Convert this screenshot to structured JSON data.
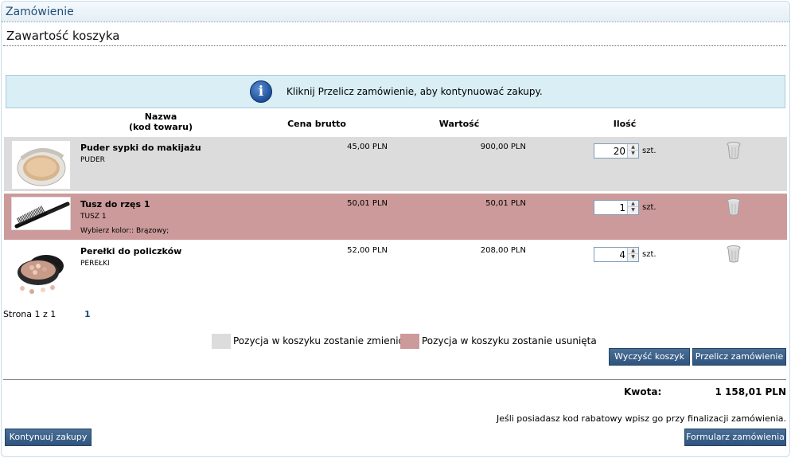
{
  "window": {
    "title": "Zamówienie"
  },
  "section": {
    "title": "Zawartość koszyka"
  },
  "info": {
    "message": "Kliknij Przelicz zamówienie, aby kontynuować zakupy."
  },
  "columns": {
    "name_line1": "Nazwa",
    "name_line2": "(kod towaru)",
    "price": "Cena brutto",
    "value": "Wartość",
    "qty": "Ilość"
  },
  "items": [
    {
      "name": "Puder sypki do makijażu",
      "code": "PUDER",
      "option": "",
      "price": "45,00 PLN",
      "value": "900,00 PLN",
      "qty": "20",
      "unit": "szt.",
      "state": "changed",
      "icon": "powder-compact-icon"
    },
    {
      "name": "Tusz do rzęs 1",
      "code": "TUSZ 1",
      "option": "Wybierz kolor:: Brązowy;",
      "price": "50,01 PLN",
      "value": "50,01 PLN",
      "qty": "1",
      "unit": "szt.",
      "state": "removed",
      "icon": "mascara-brush-icon"
    },
    {
      "name": "Perełki do policzków",
      "code": "PEREŁKI",
      "option": "",
      "price": "52,00 PLN",
      "value": "208,00 PLN",
      "qty": "4",
      "unit": "szt.",
      "state": "normal",
      "icon": "blush-pearls-icon"
    }
  ],
  "pager": {
    "label": "Strona 1 z 1",
    "current": "1"
  },
  "legend": {
    "changed": "Pozycja w koszyku zostanie zmieniona",
    "removed": "Pozycja w koszyku zostanie usunięta"
  },
  "buttons": {
    "clear": "Wyczyść koszyk",
    "recalc": "Przelicz zamówienie",
    "continue": "Kontynuuj zakupy",
    "checkout": "Formularz zamówienia"
  },
  "summary": {
    "total_label": "Kwota:",
    "total_value": "1 158,01 PLN",
    "discount_note": "Jeśli posiadasz kod rabatowy wpisz go przy finalizacji zamówienia."
  },
  "colors": {
    "changed_row": "#dcdcdc",
    "removed_row": "#cc9a9a",
    "info_bg": "#d9eef5",
    "button_bg": "#34597f",
    "title_text": "#1f4e79"
  }
}
